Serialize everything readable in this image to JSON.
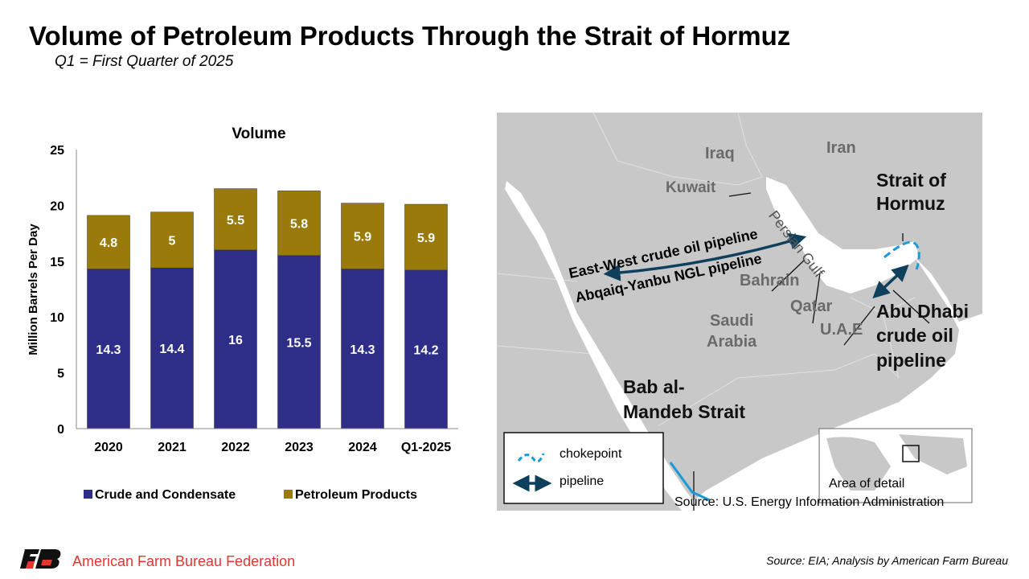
{
  "title": "Volume of Petroleum Products Through the Strait of Hormuz",
  "subtitle": "Q1 = First Quarter of 2025",
  "chart_data": {
    "type": "bar",
    "stacked": true,
    "title": "Volume",
    "xlabel": "",
    "ylabel": "Million Barrels Per Day",
    "ylim": [
      0,
      25
    ],
    "yticks": [
      0,
      5,
      10,
      15,
      20,
      25
    ],
    "categories": [
      "2020",
      "2021",
      "2022",
      "2023",
      "2024",
      "Q1-2025"
    ],
    "series": [
      {
        "name": "Crude and Condensate",
        "color": "#2e2d88",
        "values": [
          14.3,
          14.4,
          16,
          15.5,
          14.3,
          14.2
        ]
      },
      {
        "name": "Petroleum Products",
        "color": "#9a7a0a",
        "values": [
          4.8,
          5,
          5.5,
          5.8,
          5.9,
          5.9
        ]
      }
    ],
    "legend": "bottom",
    "grid": false
  },
  "map": {
    "countries": [
      "Iraq",
      "Iran",
      "Kuwait",
      "Bahrain",
      "Qatar",
      "Saudi",
      "Arabia",
      "U.A.E"
    ],
    "water_label": "Persian Gulf",
    "labels": {
      "hormuz1": "Strait of",
      "hormuz2": "Hormuz",
      "ew": "East-West crude oil pipeline",
      "ay": "Abqaiq-Yanbu NGL pipeline",
      "ad1": "Abu Dhabi",
      "ad2": "crude oil",
      "ad3": "pipeline",
      "bab1": "Bab al-",
      "bab2": "Mandeb Strait"
    },
    "legend": {
      "chokepoint": "chokepoint",
      "pipeline": "pipeline"
    },
    "inset_label": "Area of detail",
    "source": "Source: U.S. Energy Information Administration",
    "colors": {
      "land": "#c8c8c8",
      "chokepoint": "#1a9ad6",
      "pipeline": "#0e3f5c"
    }
  },
  "footer": {
    "org": "American Farm Bureau Federation",
    "logo": "FB",
    "source": "Source: EIA; Analysis by American Farm Bureau"
  }
}
